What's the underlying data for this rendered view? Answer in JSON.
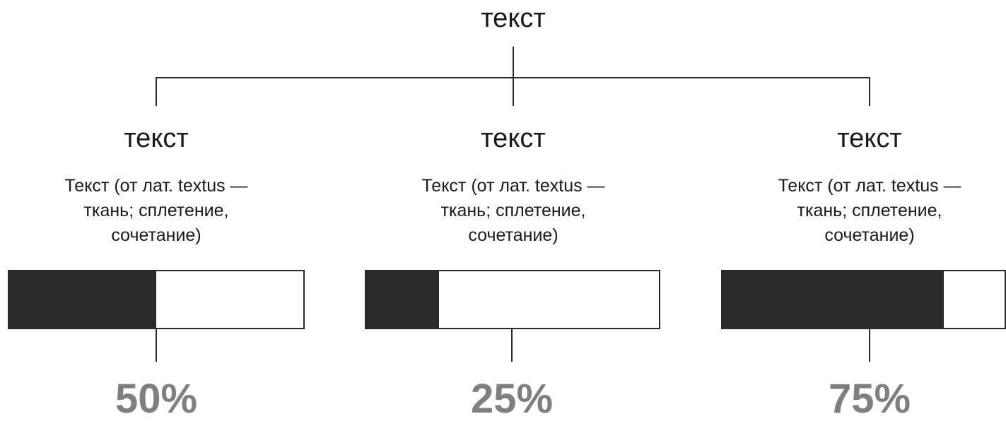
{
  "root": {
    "title": "текст"
  },
  "nodes": [
    {
      "title": "текст",
      "desc_lines": [
        "Текст (от лат. textus —",
        "ткань; сплетение,",
        "сочетание)"
      ],
      "percent_label": "50%",
      "fill_fraction": 0.5
    },
    {
      "title": "текст",
      "desc_lines": [
        "Текст (от лат. textus —",
        "ткань; сплетение,",
        "сочетание)"
      ],
      "percent_label": "25%",
      "fill_fraction": 0.25
    },
    {
      "title": "текст",
      "desc_lines": [
        "Текст (от лат. textus —",
        "ткань; сплетение,",
        "сочетание)"
      ],
      "percent_label": "75%",
      "fill_fraction": 0.75
    }
  ],
  "colors": {
    "line": "#2a2a2a",
    "bar_fill": "#2a2a2a",
    "bar_empty": "#ffffff",
    "percent_text": "#7f7f7f",
    "text": "#1a1a1a"
  }
}
